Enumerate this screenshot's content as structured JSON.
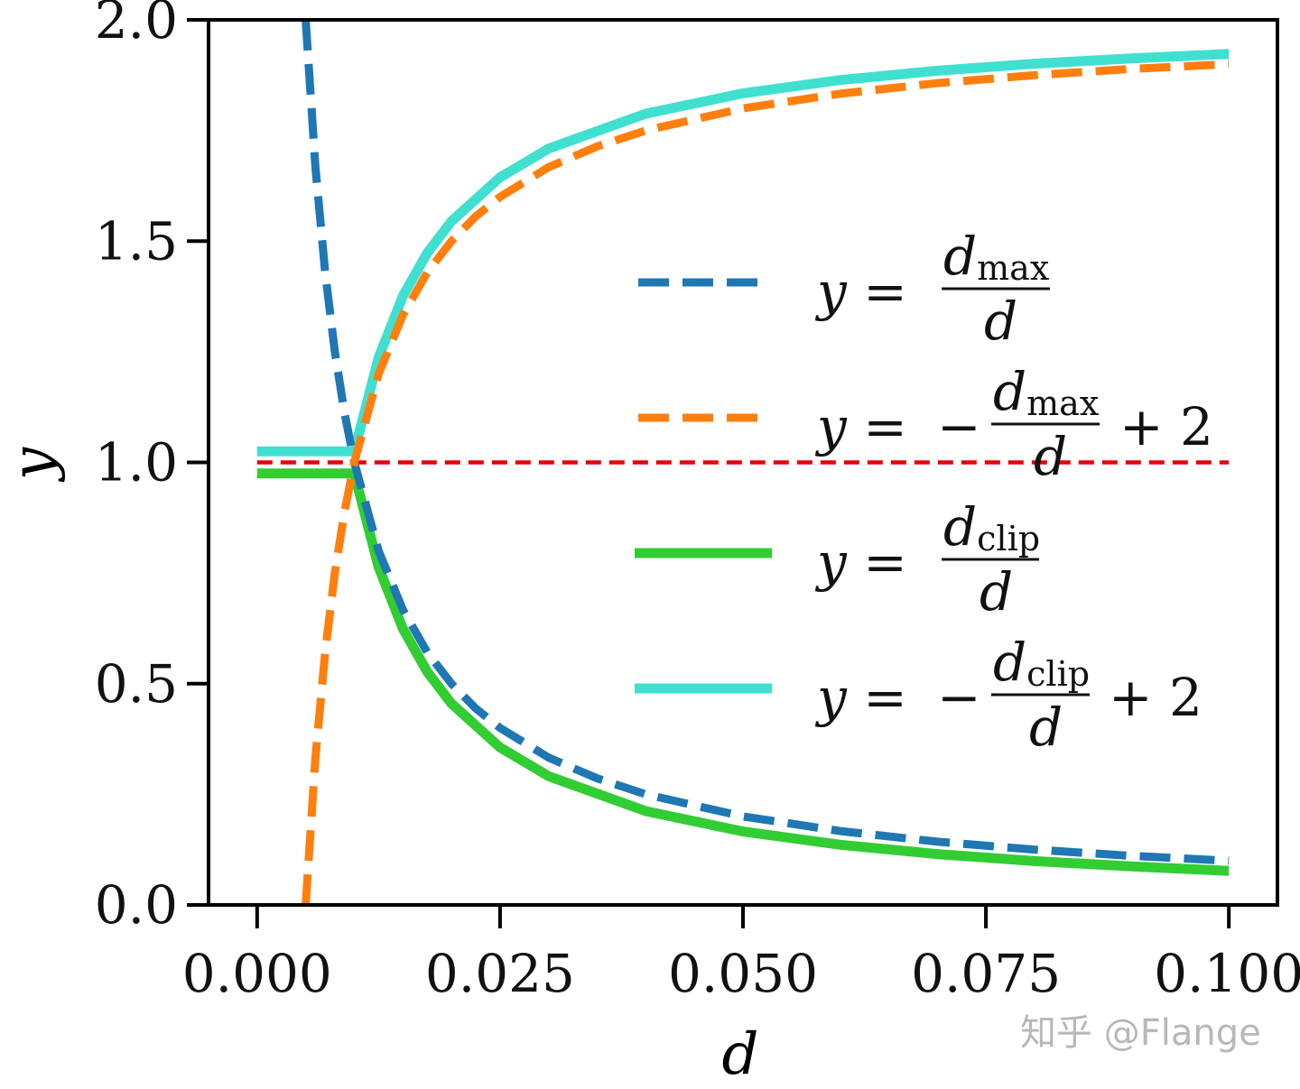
{
  "chart_data": {
    "type": "line",
    "xlabel": "d",
    "ylabel": "y",
    "xlim": [
      -0.005,
      0.105
    ],
    "ylim": [
      0.0,
      2.0
    ],
    "grid": false,
    "legend_placement": "center-right",
    "x_ticks": [
      "0.000",
      "0.025",
      "0.050",
      "0.075",
      "0.100"
    ],
    "x_tick_values": [
      0,
      0.025,
      0.05,
      0.075,
      0.1
    ],
    "y_ticks": [
      "0.0",
      "0.5",
      "1.0",
      "1.5",
      "2.0"
    ],
    "y_tick_values": [
      0,
      0.5,
      1.0,
      1.5,
      2.0
    ],
    "reference_line": {
      "y": 1.0,
      "x_range": [
        0,
        0.1
      ],
      "color": "#e8000b",
      "style": "dashed"
    },
    "series": [
      {
        "key": "dmax_over_d",
        "color": "#1f77b4",
        "style": "dashed",
        "legend": {
          "lhs": "y =",
          "num": "d",
          "num_sub": "max",
          "den": "d",
          "prefix": "",
          "suffix": ""
        },
        "x": [
          0.005,
          0.006,
          0.007,
          0.008,
          0.009,
          0.01,
          0.0125,
          0.015,
          0.0175,
          0.02,
          0.0225,
          0.025,
          0.03,
          0.035,
          0.04,
          0.05,
          0.06,
          0.07,
          0.08,
          0.09,
          0.1
        ],
        "y": [
          2.0,
          1.667,
          1.429,
          1.25,
          1.111,
          1.0,
          0.8,
          0.667,
          0.571,
          0.5,
          0.444,
          0.4,
          0.333,
          0.286,
          0.25,
          0.2,
          0.167,
          0.143,
          0.125,
          0.111,
          0.1
        ]
      },
      {
        "key": "neg_dmax_over_d_plus_2",
        "color": "#ff7f0e",
        "style": "dashed",
        "legend": {
          "lhs": "y =",
          "prefix": "−",
          "num": "d",
          "num_sub": "max",
          "den": "d",
          "suffix": "+ 2"
        },
        "x": [
          0.005,
          0.006,
          0.007,
          0.008,
          0.009,
          0.01,
          0.0125,
          0.015,
          0.0175,
          0.02,
          0.0225,
          0.025,
          0.03,
          0.035,
          0.04,
          0.05,
          0.06,
          0.07,
          0.08,
          0.09,
          0.1
        ],
        "y": [
          0.0,
          0.333,
          0.571,
          0.75,
          0.889,
          1.0,
          1.2,
          1.333,
          1.429,
          1.5,
          1.556,
          1.6,
          1.667,
          1.714,
          1.75,
          1.8,
          1.833,
          1.857,
          1.875,
          1.889,
          1.9
        ]
      },
      {
        "key": "dclip_over_d",
        "color": "#32cd32",
        "style": "solid",
        "legend": {
          "lhs": "y =",
          "num": "d",
          "num_sub": "clip",
          "den": "d",
          "prefix": "",
          "suffix": ""
        },
        "x": [
          0.0,
          0.01,
          0.0125,
          0.015,
          0.0175,
          0.02,
          0.025,
          0.03,
          0.04,
          0.05,
          0.06,
          0.07,
          0.08,
          0.09,
          0.1
        ],
        "y": [
          0.975,
          0.975,
          0.763,
          0.624,
          0.527,
          0.455,
          0.356,
          0.291,
          0.212,
          0.166,
          0.136,
          0.115,
          0.099,
          0.087,
          0.077
        ]
      },
      {
        "key": "neg_dclip_over_d_plus_2",
        "color": "#40e0d0",
        "style": "solid",
        "legend": {
          "lhs": "y =",
          "prefix": "−",
          "num": "d",
          "num_sub": "clip",
          "den": "d",
          "suffix": "+ 2"
        },
        "x": [
          0.0,
          0.01,
          0.0125,
          0.015,
          0.0175,
          0.02,
          0.025,
          0.03,
          0.04,
          0.05,
          0.06,
          0.07,
          0.08,
          0.09,
          0.1
        ],
        "y": [
          1.025,
          1.025,
          1.237,
          1.376,
          1.473,
          1.545,
          1.644,
          1.709,
          1.788,
          1.834,
          1.864,
          1.885,
          1.901,
          1.913,
          1.923
        ]
      }
    ]
  },
  "watermark": "知乎 @Flange"
}
